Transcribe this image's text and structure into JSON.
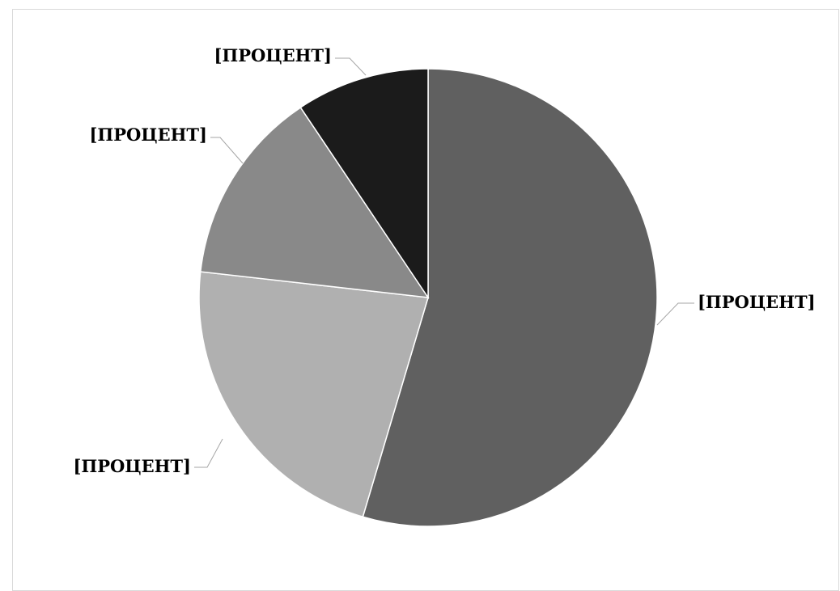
{
  "chart_data": {
    "type": "pie",
    "title": "",
    "start_angle_deg": 0,
    "direction": "clockwise",
    "slices": [
      {
        "label": "[ПРОЦЕНТ]",
        "value": 54.6,
        "color": "#606060"
      },
      {
        "label": "[ПРОЦЕНТ]",
        "value": 22.2,
        "color": "#b0b0b0"
      },
      {
        "label": "[ПРОЦЕНТ]",
        "value": 13.8,
        "color": "#898989"
      },
      {
        "label": "[ПРОЦЕНТ]",
        "value": 9.4,
        "color": "#1b1b1b"
      }
    ]
  }
}
